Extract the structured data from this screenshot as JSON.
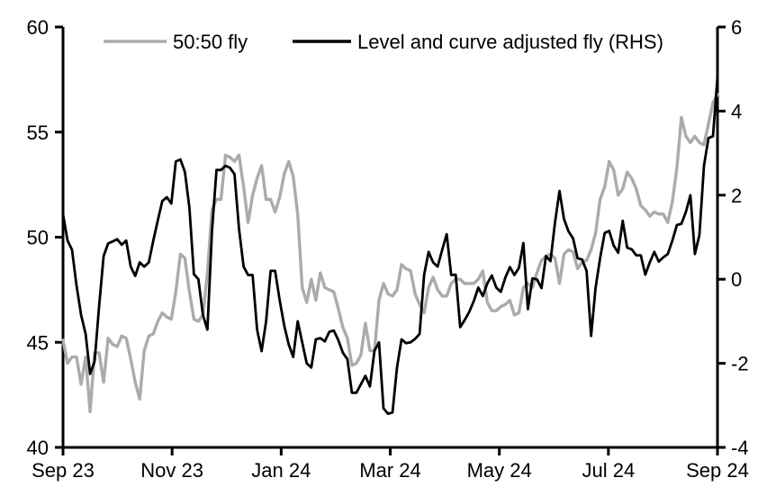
{
  "chart_data": {
    "type": "line",
    "title": "",
    "xlabel": "",
    "ylabel_left": "",
    "ylabel_right": "",
    "grid": false,
    "legend_position": "top",
    "background_color": "#ffffff",
    "axis_color": "#000000",
    "x_axis": {
      "range_months": [
        0,
        12
      ],
      "start_label": "Sep 23",
      "end_label": "Sep 24",
      "tick_months": [
        0,
        2,
        4,
        6,
        8,
        10,
        12
      ],
      "tick_labels": [
        "Sep 23",
        "Nov 23",
        "Jan 24",
        "Mar 24",
        "May 24",
        "Jul 24",
        "Sep 24"
      ]
    },
    "left_axis": {
      "range": [
        40,
        60
      ],
      "ticks": [
        60,
        55,
        50,
        45,
        40
      ],
      "tick_labels": [
        "60",
        "55",
        "50",
        "45",
        "40"
      ]
    },
    "right_axis": {
      "range": [
        -4,
        6
      ],
      "ticks": [
        6,
        4,
        2,
        0,
        -2,
        -4
      ],
      "tick_labels": [
        "6",
        "4",
        "2",
        "0",
        "-2",
        "-4"
      ]
    },
    "sampling": "uniform from Sep 2023 to Sep 2024, approx 2.5-day steps",
    "series": [
      {
        "name": "50:50 fly",
        "axis": "left",
        "color": "#ababab",
        "values": [
          45.1,
          44.0,
          44.3,
          44.3,
          43.0,
          44.3,
          41.7,
          44.5,
          44.5,
          43.1,
          45.2,
          44.9,
          44.8,
          45.3,
          45.2,
          44.2,
          43.1,
          42.3,
          44.6,
          45.3,
          45.4,
          46.0,
          46.4,
          46.2,
          46.1,
          47.4,
          49.2,
          49.0,
          47.4,
          46.1,
          46.0,
          46.3,
          48.3,
          51.3,
          51.8,
          51.8,
          53.9,
          53.8,
          53.6,
          53.9,
          52.4,
          50.7,
          52.0,
          52.8,
          53.4,
          51.8,
          51.8,
          51.2,
          51.9,
          53.0,
          53.6,
          52.9,
          51.1,
          47.6,
          46.9,
          48.0,
          47.0,
          48.3,
          47.6,
          47.5,
          47.4,
          46.6,
          45.7,
          45.2,
          43.9,
          44.0,
          44.4,
          45.9,
          44.6,
          44.6,
          47.0,
          47.8,
          47.3,
          47.2,
          47.5,
          48.7,
          48.5,
          48.4,
          47.3,
          46.8,
          46.4,
          47.6,
          48.1,
          47.5,
          47.2,
          47.2,
          47.8,
          48.0,
          48.0,
          47.8,
          47.8,
          47.8,
          48.0,
          48.4,
          46.9,
          46.5,
          46.5,
          46.7,
          46.8,
          47.0,
          46.3,
          46.4,
          47.6,
          47.8,
          47.6,
          48.3,
          48.9,
          49.1,
          49.2,
          49.0,
          47.8,
          49.2,
          49.4,
          49.3,
          48.5,
          48.8,
          48.9,
          49.4,
          50.2,
          51.8,
          52.4,
          53.6,
          53.2,
          52.0,
          52.3,
          53.1,
          52.8,
          52.3,
          51.5,
          51.3,
          51.0,
          51.2,
          51.1,
          51.1,
          50.7,
          51.7,
          53.3,
          55.7,
          54.8,
          54.5,
          54.8,
          54.5,
          54.4,
          55.4,
          56.4,
          56.8
        ]
      },
      {
        "name": "Level and curve adjusted fly (RHS)",
        "axis": "right",
        "color": "#000000",
        "values": [
          1.55,
          0.92,
          0.7,
          -0.15,
          -0.85,
          -1.3,
          -2.25,
          -1.95,
          -0.64,
          0.55,
          0.85,
          0.9,
          0.95,
          0.82,
          0.92,
          0.3,
          0.08,
          0.4,
          0.3,
          0.4,
          0.92,
          1.4,
          1.86,
          1.95,
          1.8,
          2.8,
          2.85,
          2.55,
          1.7,
          0.12,
          0.0,
          -0.85,
          -1.2,
          1.15,
          2.6,
          2.6,
          2.7,
          2.65,
          2.5,
          1.2,
          0.3,
          0.1,
          0.1,
          -1.2,
          -1.71,
          -1.0,
          0.2,
          0.2,
          -0.5,
          -1.1,
          -1.55,
          -1.85,
          -1.0,
          -1.5,
          -2.0,
          -2.1,
          -1.43,
          -1.4,
          -1.48,
          -1.25,
          -1.22,
          -1.45,
          -1.75,
          -1.9,
          -2.7,
          -2.7,
          -2.5,
          -2.3,
          -2.55,
          -1.7,
          -1.5,
          -3.07,
          -3.2,
          -3.17,
          -2.1,
          -1.43,
          -1.52,
          -1.5,
          -1.42,
          -1.3,
          0.1,
          0.65,
          0.4,
          0.3,
          0.7,
          1.07,
          0.1,
          0.11,
          -1.14,
          -0.97,
          -0.78,
          -0.52,
          -0.2,
          -0.4,
          -0.1,
          0.09,
          -0.2,
          -0.3,
          0.04,
          0.29,
          0.1,
          0.27,
          0.86,
          -0.71,
          0.02,
          0.0,
          -0.21,
          0.55,
          0.43,
          1.35,
          2.1,
          1.43,
          1.14,
          0.97,
          0.5,
          0.47,
          0.2,
          -1.35,
          -0.2,
          0.5,
          1.1,
          1.15,
          0.8,
          0.63,
          1.39,
          0.75,
          0.71,
          0.57,
          0.57,
          0.11,
          0.4,
          0.65,
          0.42,
          0.52,
          0.6,
          0.92,
          1.29,
          1.32,
          1.6,
          2.0,
          0.6,
          1.05,
          2.7,
          3.36,
          3.4,
          4.82
        ]
      }
    ]
  }
}
